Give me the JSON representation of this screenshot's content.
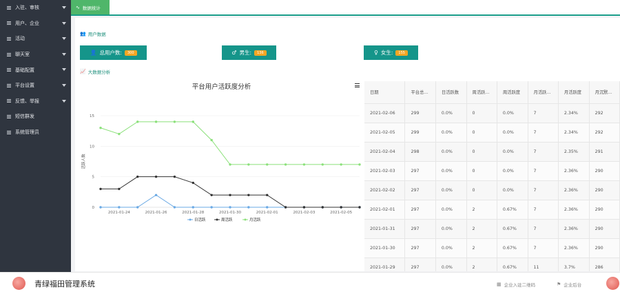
{
  "sidebar": {
    "items": [
      {
        "label": "入驻、审核",
        "caret": true
      },
      {
        "label": "用户、企业",
        "caret": true
      },
      {
        "label": "活动",
        "caret": true
      },
      {
        "label": "聊天室",
        "caret": true
      },
      {
        "label": "基础配置",
        "caret": true
      },
      {
        "label": "平台设置",
        "caret": true
      },
      {
        "label": "反馈、举报",
        "caret": true
      },
      {
        "label": "短信群发",
        "caret": false
      },
      {
        "label": "系统管理员",
        "caret": false
      }
    ]
  },
  "header": {
    "tab_label": "数据统计",
    "tab_icon": "activity-icon"
  },
  "user_section": {
    "title": "用户数据",
    "stats": [
      {
        "label": "总用户数:",
        "value": "300",
        "icon": "user-icon"
      },
      {
        "label": "男生:",
        "value": "136",
        "icon": "male-icon"
      },
      {
        "label": "女生:",
        "value": "155",
        "icon": "female-icon"
      }
    ]
  },
  "analysis_section": {
    "title": "大数据分析"
  },
  "chart_data": {
    "type": "line",
    "title": "平台用户活跃度分析",
    "ylabel": "活跃人数",
    "xlabel": "",
    "ylim": [
      0,
      15
    ],
    "yticks": [
      0,
      5,
      10,
      15
    ],
    "x": [
      "2021-01-23",
      "2021-01-24",
      "2021-01-25",
      "2021-01-26",
      "2021-01-27",
      "2021-01-28",
      "2021-01-29",
      "2021-01-30",
      "2021-01-31",
      "2021-02-01",
      "2021-02-02",
      "2021-02-03",
      "2021-02-04",
      "2021-02-05",
      "2021-02-06"
    ],
    "xtick_labels": [
      "2021-01-24",
      "2021-01-26",
      "2021-01-28",
      "2021-01-30",
      "2021-02-01",
      "2021-02-03",
      "2021-02-05"
    ],
    "legend_position": "bottom",
    "grid": true,
    "series": [
      {
        "name": "日活跃",
        "color": "#6aa9e4",
        "values": [
          0,
          0,
          0,
          2,
          0,
          0,
          0,
          0,
          0,
          0,
          0,
          0,
          0,
          0,
          0
        ]
      },
      {
        "name": "周活跃",
        "color": "#333333",
        "values": [
          3,
          3,
          5,
          5,
          5,
          4,
          2,
          2,
          2,
          2,
          0,
          0,
          0,
          0,
          0
        ]
      },
      {
        "name": "月活跃",
        "color": "#8be07a",
        "values": [
          13,
          12,
          14,
          14,
          14,
          14,
          11,
          7,
          7,
          7,
          7,
          7,
          7,
          7,
          7
        ]
      }
    ]
  },
  "table": {
    "columns": [
      "日期",
      "平台总...",
      "日活跃数",
      "周活跃...",
      "周活跃度",
      "月活跃...",
      "月活跃度",
      "月沉默..."
    ],
    "rows": [
      [
        "2021-02-06",
        "299",
        "0.0%",
        "0",
        "0.0%",
        "7",
        "2.34%",
        "292"
      ],
      [
        "2021-02-05",
        "299",
        "0.0%",
        "0",
        "0.0%",
        "7",
        "2.34%",
        "292"
      ],
      [
        "2021-02-04",
        "298",
        "0.0%",
        "0",
        "0.0%",
        "7",
        "2.35%",
        "291"
      ],
      [
        "2021-02-03",
        "297",
        "0.0%",
        "0",
        "0.0%",
        "7",
        "2.36%",
        "290"
      ],
      [
        "2021-02-02",
        "297",
        "0.0%",
        "0",
        "0.0%",
        "7",
        "2.36%",
        "290"
      ],
      [
        "2021-02-01",
        "297",
        "0.0%",
        "2",
        "0.67%",
        "7",
        "2.36%",
        "290"
      ],
      [
        "2021-01-31",
        "297",
        "0.0%",
        "2",
        "0.67%",
        "7",
        "2.36%",
        "290"
      ],
      [
        "2021-01-30",
        "297",
        "0.0%",
        "2",
        "0.67%",
        "7",
        "2.36%",
        "290"
      ],
      [
        "2021-01-29",
        "297",
        "0.0%",
        "2",
        "0.67%",
        "11",
        "3.7%",
        "286"
      ]
    ]
  },
  "footer": {
    "system_title": "青绿福田管理系统",
    "links": [
      {
        "label": "企业入驻二维码",
        "icon": "qrcode-icon"
      },
      {
        "label": "企业后台",
        "icon": "flag-icon"
      }
    ]
  }
}
